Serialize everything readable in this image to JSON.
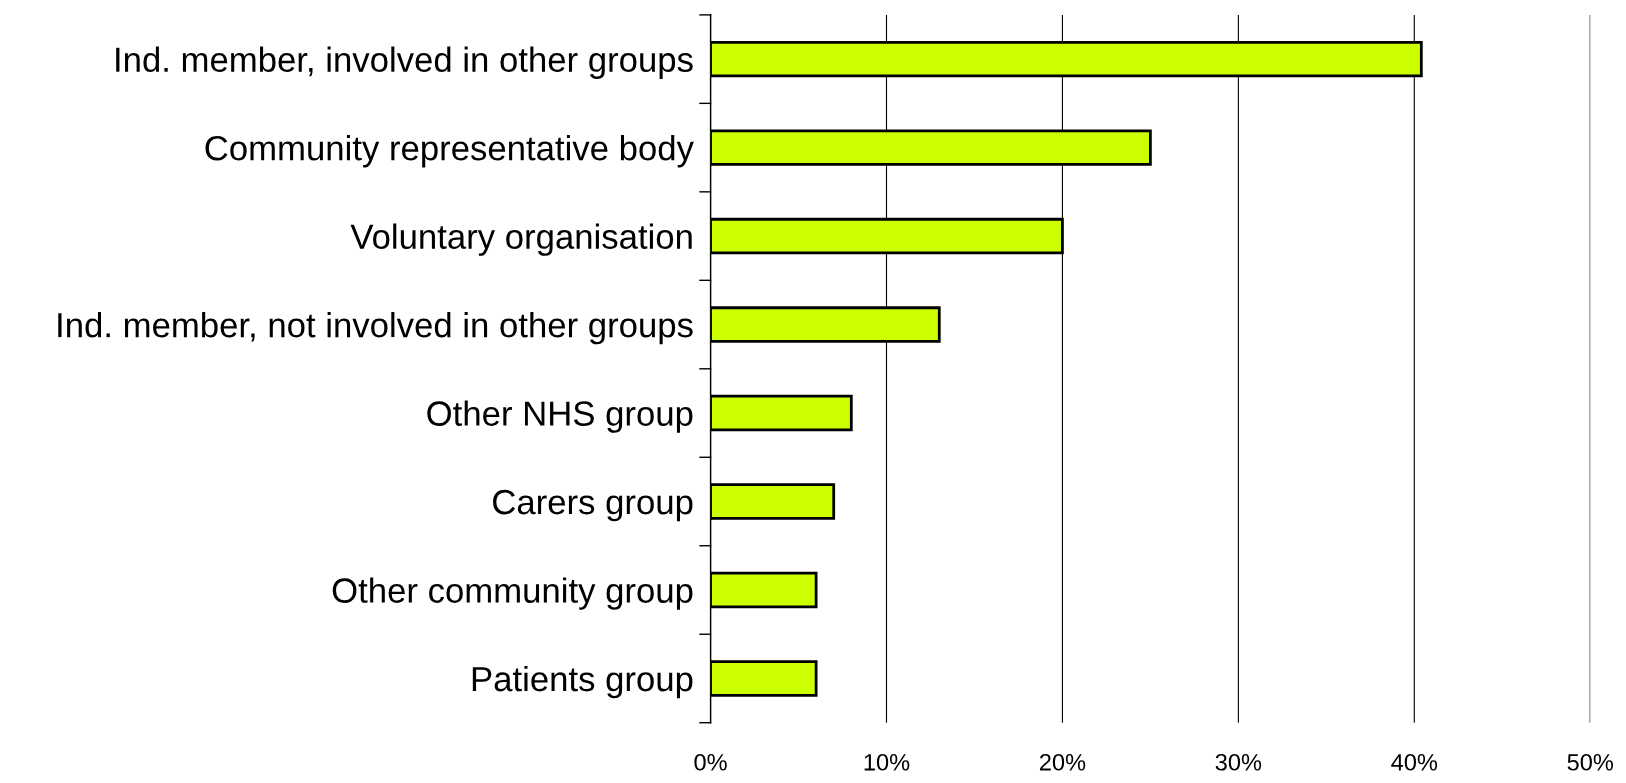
{
  "chart_data": {
    "type": "bar",
    "orientation": "horizontal",
    "categories": [
      "Ind. member, involved in other groups",
      "Community representative body",
      "Voluntary organisation",
      "Ind. member, not involved in other groups",
      "Other NHS group",
      "Carers group",
      "Other community group",
      "Patients group"
    ],
    "values": [
      40.4,
      25,
      20,
      13,
      8,
      7,
      6,
      6
    ],
    "color": "#ccff00",
    "xlim": [
      0,
      50
    ],
    "xticks": [
      {
        "value": 0,
        "label": "0%"
      },
      {
        "value": 10,
        "label": "10%"
      },
      {
        "value": 20,
        "label": "20%"
      },
      {
        "value": 30,
        "label": "30%"
      },
      {
        "value": 40,
        "label": "40%"
      },
      {
        "value": 50,
        "label": "50%"
      }
    ],
    "grid": "x"
  }
}
